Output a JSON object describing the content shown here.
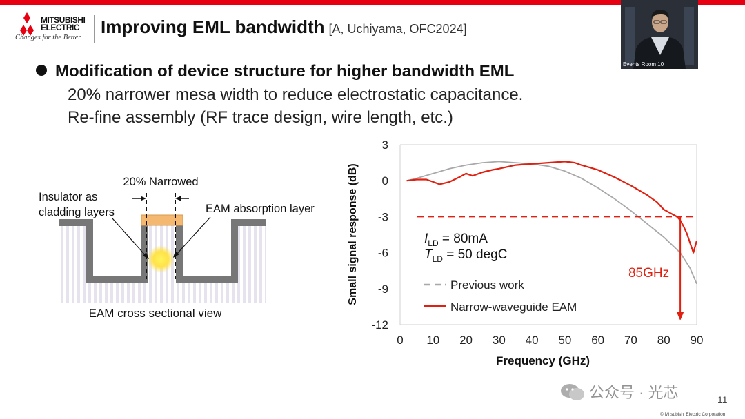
{
  "header": {
    "brand_line1": "MITSUBISHI",
    "brand_line2": "ELECTRIC",
    "tagline": "Changes for the Better",
    "title": "Improving EML bandwidth",
    "reference": "[A, Uchiyama, OFC2024]",
    "accent_color": "#e60012"
  },
  "camera": {
    "label": "Events Room 10"
  },
  "body": {
    "bullet": "Modification of  device structure for higher bandwidth EML",
    "sub1": "20% narrower mesa width to reduce electrostatic capacitance.",
    "sub2": "Re-fine assembly (RF trace design, wire length, etc.)"
  },
  "diagram": {
    "narrowed_label": "20% Narrowed",
    "insulator_label_line1": "Insulator as",
    "insulator_label_line2": "cladding layers",
    "eam_layer_label": "EAM absorption layer",
    "caption": "EAM cross sectional view"
  },
  "chart_data": {
    "type": "line",
    "xlabel": "Frequency (GHz)",
    "ylabel": "Small signal response (dB)",
    "xlim": [
      0,
      90
    ],
    "ylim": [
      -12,
      3
    ],
    "xticks": [
      0,
      10,
      20,
      30,
      40,
      50,
      60,
      70,
      80,
      90
    ],
    "yticks": [
      3,
      0,
      -3,
      -6,
      -9,
      -12
    ],
    "grid": false,
    "legend_position": "bottom-left",
    "reference_line": {
      "y": -3,
      "color": "#e02010"
    },
    "annotation_85ghz": {
      "text": "85GHz",
      "x": 85
    },
    "conditions": {
      "ild_sym": "I",
      "ild_sub": "LD",
      "ild_val": " = 80mA",
      "tld_sym": "T",
      "tld_sub": "LD",
      "tld_val": " = 50 degC"
    },
    "series": [
      {
        "name": "Previous work",
        "color": "#a8a8a8",
        "x": [
          2,
          5,
          10,
          15,
          20,
          25,
          30,
          35,
          40,
          45,
          50,
          55,
          60,
          65,
          70,
          75,
          80,
          85,
          88,
          90
        ],
        "y": [
          0.0,
          0.2,
          0.6,
          1.0,
          1.3,
          1.5,
          1.6,
          1.5,
          1.4,
          1.2,
          0.8,
          0.2,
          -0.6,
          -1.5,
          -2.5,
          -3.6,
          -4.7,
          -6.0,
          -7.3,
          -8.6
        ]
      },
      {
        "name": "Narrow-waveguide EAM",
        "color": "#e02010",
        "x": [
          2,
          5,
          8,
          10,
          12,
          15,
          18,
          20,
          22,
          25,
          28,
          30,
          35,
          40,
          45,
          50,
          53,
          55,
          60,
          65,
          70,
          75,
          78,
          80,
          82,
          84,
          85,
          86,
          87,
          88,
          89,
          90
        ],
        "y": [
          0.0,
          0.1,
          0.1,
          -0.1,
          -0.3,
          -0.1,
          0.3,
          0.6,
          0.4,
          0.7,
          0.9,
          1.0,
          1.3,
          1.4,
          1.5,
          1.6,
          1.5,
          1.3,
          0.9,
          0.3,
          -0.4,
          -1.2,
          -1.8,
          -2.4,
          -2.7,
          -3.0,
          -3.3,
          -3.8,
          -4.4,
          -5.2,
          -6.0,
          -5.0
        ]
      }
    ]
  },
  "footer": {
    "watermark": "公众号 · 光芯",
    "slide_number": "11",
    "copyright": "© Mitsubishi Electric Corporation"
  }
}
